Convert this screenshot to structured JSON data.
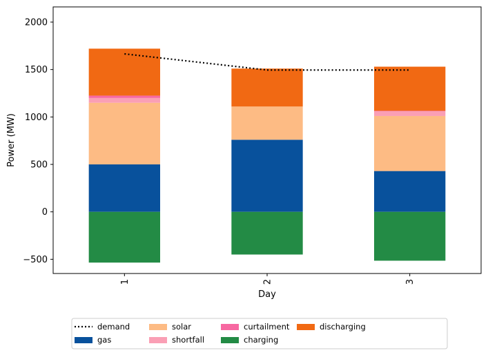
{
  "chart_data": {
    "type": "bar",
    "stacked": true,
    "title": "",
    "xlabel": "Day",
    "ylabel": "Power (MW)",
    "ylim": [
      -650,
      2160
    ],
    "yticks": [
      -500,
      0,
      500,
      1000,
      1500,
      2000
    ],
    "categories": [
      "1",
      "2",
      "3"
    ],
    "grid": false,
    "legend_position": "bottom-center",
    "series": [
      {
        "name": "gas",
        "color": "#08519c",
        "values": [
          500,
          760,
          430
        ]
      },
      {
        "name": "solar",
        "color": "#fdbb84",
        "values": [
          650,
          350,
          580
        ]
      },
      {
        "name": "shortfall",
        "color": "#fa9fb5",
        "values": [
          50,
          0,
          50
        ]
      },
      {
        "name": "curtailment",
        "color": "#f768a1",
        "values": [
          25,
          0,
          5
        ]
      },
      {
        "name": "charging",
        "color": "#238b45",
        "values": [
          -535,
          -450,
          -515
        ]
      },
      {
        "name": "discharging",
        "color": "#f16913",
        "values": [
          495,
          400,
          465
        ]
      }
    ],
    "demand": {
      "name": "demand",
      "color": "#000000",
      "style": "dotted",
      "values": [
        1665,
        1495,
        1495
      ]
    },
    "legend_order": [
      "demand",
      "gas",
      "solar",
      "shortfall",
      "curtailment",
      "charging",
      "discharging"
    ]
  }
}
